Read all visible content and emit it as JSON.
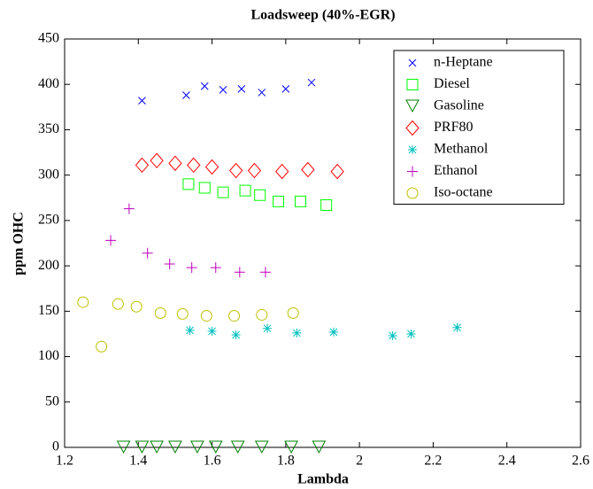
{
  "chart_data": {
    "type": "scatter",
    "title": "Loadsweep (40%-EGR)",
    "x_label": "Lambda",
    "y_label": "ppm OHC",
    "xlim": [
      1.2,
      2.6
    ],
    "xticks": [
      1.2,
      1.4,
      1.6,
      1.8,
      2,
      2.2,
      2.4,
      2.6
    ],
    "ylim": [
      0,
      450
    ],
    "yticks": [
      0,
      50,
      100,
      150,
      200,
      250,
      300,
      350,
      400,
      450
    ],
    "legend": "upper right",
    "series": [
      {
        "name": "n-Heptane",
        "color": "#0000ff",
        "marker": "x",
        "x": [
          1.41,
          1.53,
          1.58,
          1.63,
          1.68,
          1.735,
          1.8,
          1.87
        ],
        "values": [
          382,
          388,
          398,
          394,
          395,
          391,
          395,
          402
        ]
      },
      {
        "name": "Diesel",
        "color": "#00ff00",
        "marker": "square",
        "x": [
          1.536,
          1.58,
          1.63,
          1.69,
          1.73,
          1.78,
          1.84,
          1.91
        ],
        "values": [
          290,
          286,
          281,
          283,
          278,
          271,
          271,
          267
        ]
      },
      {
        "name": "Gasoline",
        "color": "#008000",
        "marker": "triangle-down",
        "x": [
          1.36,
          1.41,
          1.45,
          1.5,
          1.56,
          1.61,
          1.67,
          1.735,
          1.815,
          1.89
        ],
        "values": [
          0,
          0,
          0,
          0,
          0,
          0,
          0,
          0,
          0,
          0
        ]
      },
      {
        "name": "PRF80",
        "color": "#ff0000",
        "marker": "diamond",
        "x": [
          1.41,
          1.45,
          1.5,
          1.55,
          1.6,
          1.665,
          1.715,
          1.79,
          1.86,
          1.94
        ],
        "values": [
          311,
          316,
          313,
          311,
          309,
          305,
          305,
          304,
          306,
          304
        ]
      },
      {
        "name": "Methanol",
        "color": "#00bfbf",
        "marker": "star",
        "x": [
          1.54,
          1.6,
          1.665,
          1.75,
          1.83,
          1.93,
          2.09,
          2.14,
          2.265
        ],
        "values": [
          129,
          128,
          124,
          131,
          126,
          127,
          123,
          125,
          132
        ]
      },
      {
        "name": "Ethanol",
        "color": "#bf00bf",
        "marker": "plus",
        "x": [
          1.325,
          1.375,
          1.425,
          1.485,
          1.545,
          1.61,
          1.675,
          1.745
        ],
        "values": [
          228,
          263,
          214,
          202,
          198,
          198,
          193,
          193
        ]
      },
      {
        "name": "Iso-octane",
        "color": "#bfbf00",
        "marker": "circle",
        "x": [
          1.25,
          1.3,
          1.345,
          1.395,
          1.46,
          1.52,
          1.585,
          1.66,
          1.735,
          1.82
        ],
        "values": [
          160,
          111,
          158,
          155,
          148,
          147,
          145,
          145,
          146,
          148
        ]
      }
    ]
  }
}
